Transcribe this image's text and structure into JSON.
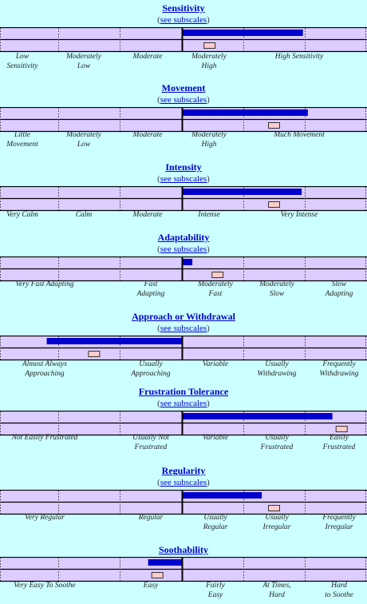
{
  "subscale_link": {
    "open": "(",
    "text": "see subscales",
    "close": ")"
  },
  "colors": {
    "score_bar": "#0000cc",
    "reference_marker": "#ffcccc",
    "row_fill": "#ddccff",
    "page_bg": "#ccffff"
  },
  "chart_data": [
    {
      "type": "bar",
      "title": "Sensitivity",
      "has_subscales": true,
      "labels": [
        [
          "Low",
          "Sensitivity"
        ],
        [
          "Moderately",
          "Low"
        ],
        [
          "Moderate"
        ],
        [
          "Moderately",
          "High"
        ],
        [
          "High Sensitivity"
        ]
      ],
      "score_bar": [
        0,
        1.97
      ],
      "reference": 0.45
    },
    {
      "type": "bar",
      "title": "Movement",
      "has_subscales": true,
      "labels": [
        [
          "Little",
          "Movement"
        ],
        [
          "Moderately",
          "Low"
        ],
        [
          "Moderate"
        ],
        [
          "Moderately",
          "High"
        ],
        [
          "Much Movement"
        ]
      ],
      "score_bar": [
        0,
        2.05
      ],
      "reference": 1.5
    },
    {
      "type": "bar",
      "title": "Intensity",
      "has_subscales": true,
      "labels": [
        [
          "Very Calm"
        ],
        [
          "Calm"
        ],
        [
          "Moderate"
        ],
        [
          "Intense"
        ],
        [
          "Very Intense"
        ]
      ],
      "score_bar": [
        0,
        1.95
      ],
      "reference": 1.5
    },
    {
      "type": "bar",
      "title": "Adaptability",
      "has_subscales": true,
      "labels": [
        [
          "Very Fast Adapting"
        ],
        [
          "Fast",
          "Adapting"
        ],
        [
          "Moderately",
          "Fast"
        ],
        [
          "Moderately",
          "Slow"
        ],
        [
          "Slow",
          "Adapting"
        ]
      ],
      "score_bar": [
        0,
        0.17
      ],
      "reference": 0.58
    },
    {
      "type": "bar",
      "title": "Approach or Withdrawal",
      "has_subscales": true,
      "labels": [
        [
          "Almost Always Approaching"
        ],
        [
          "Usually",
          "Approaching"
        ],
        [
          "Variable"
        ],
        [
          "Usually",
          "Withdrawing"
        ],
        [
          "Frequently",
          "Withdrawing"
        ]
      ],
      "score_bar": [
        -2.2,
        0
      ],
      "reference": -1.43
    },
    {
      "type": "bar",
      "title": "Frustration Tolerance",
      "has_subscales": true,
      "labels": [
        [
          "Not Easily Frustrated"
        ],
        [
          "Usually Not",
          "Frustrated"
        ],
        [
          "Variable"
        ],
        [
          "Usually",
          "Frustrated"
        ],
        [
          "Easily",
          "Frustrated"
        ]
      ],
      "score_bar": [
        0,
        2.45
      ],
      "reference": 2.6
    },
    {
      "type": "bar",
      "title": "Regularity",
      "has_subscales": true,
      "labels": [
        [
          "Very Regular"
        ],
        [
          "Regular"
        ],
        [
          "Usually",
          "Regular"
        ],
        [
          "Usually",
          "Irregular"
        ],
        [
          "Frequently",
          "Irregular"
        ]
      ],
      "score_bar": [
        0,
        1.3
      ],
      "reference": 1.5
    },
    {
      "type": "bar",
      "title": "Soothability",
      "has_subscales": false,
      "labels": [
        [
          "Very Easy To Soothe"
        ],
        [
          "Easy"
        ],
        [
          "Fairly",
          "Easy"
        ],
        [
          "At Times,",
          "Hard"
        ],
        [
          "Hard",
          "to Soothe"
        ]
      ],
      "score_bar": [
        -0.55,
        0
      ],
      "reference": -0.4
    }
  ]
}
